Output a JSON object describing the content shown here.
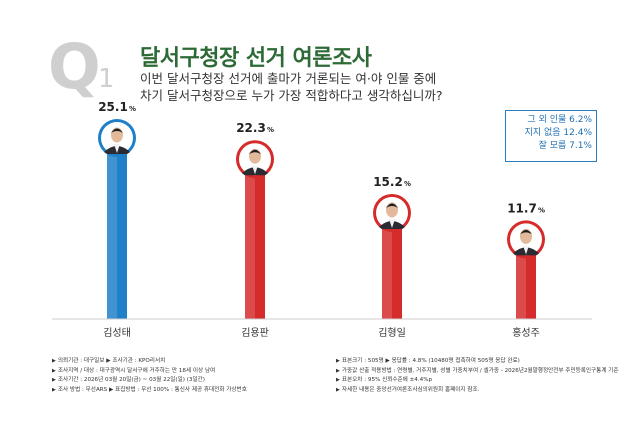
{
  "header": {
    "q_letter": "Q",
    "q_number": "1",
    "title": "달서구청장 선거 여론조사",
    "question_line1": "이번 달서구청장 선거에 출마가 거론되는 여·야 인물 중에",
    "question_line2": "차기 달서구청장으로 누가 가장 적합하다고 생각하십니까?"
  },
  "others_box": {
    "line1": "그 외 인물 6.2%",
    "line2": "지지 없음 12.4%",
    "line3": "잘 모름 7.1%"
  },
  "chart_data": {
    "type": "bar",
    "categories": [
      "김성태",
      "김용판",
      "김형일",
      "홍성주"
    ],
    "values": [
      25.1,
      22.3,
      15.2,
      11.7
    ],
    "value_labels": [
      "25.1",
      "22.3",
      "15.2",
      "11.7"
    ],
    "unit": "%",
    "bar_colors": [
      "#1f7fc8",
      "#d52b2b",
      "#d52b2b",
      "#d52b2b"
    ],
    "ylim": [
      0,
      30
    ],
    "title": "",
    "xlabel": "",
    "ylabel": ""
  },
  "footer": {
    "left": [
      "의뢰기관 : 대구일보  ▶ 조사기관 : KPO리서치",
      "조사지역 / 대상 : 대구광역시 달서구에 거주하는 만 18세 이상 남여",
      "조사기간 : 2026년 03월 20일(금) ~ 03월 22일(일) (3일간)",
      "조사 방법 : 무선ARS  ▶ 표집방법 : 무선 100% : 통신사 제공 휴대전화 가상번호"
    ],
    "right": [
      "표본크기 : 505명      ▶ 응답률 : 4.8% (10480명 접촉하여 505명 응답 완료)",
      "가중값 산출 적용방법 : 연령별, 거주지별, 성별 가중치부여 / 셀가중 - 2026년2월말행정안전부 주민등록인구통계 기준",
      "표본오차 : 95% 신뢰수준에 ±4.4%p",
      "자세한 내용은 중앙선거여론조사심의위원회 홈페이지 참조."
    ]
  }
}
